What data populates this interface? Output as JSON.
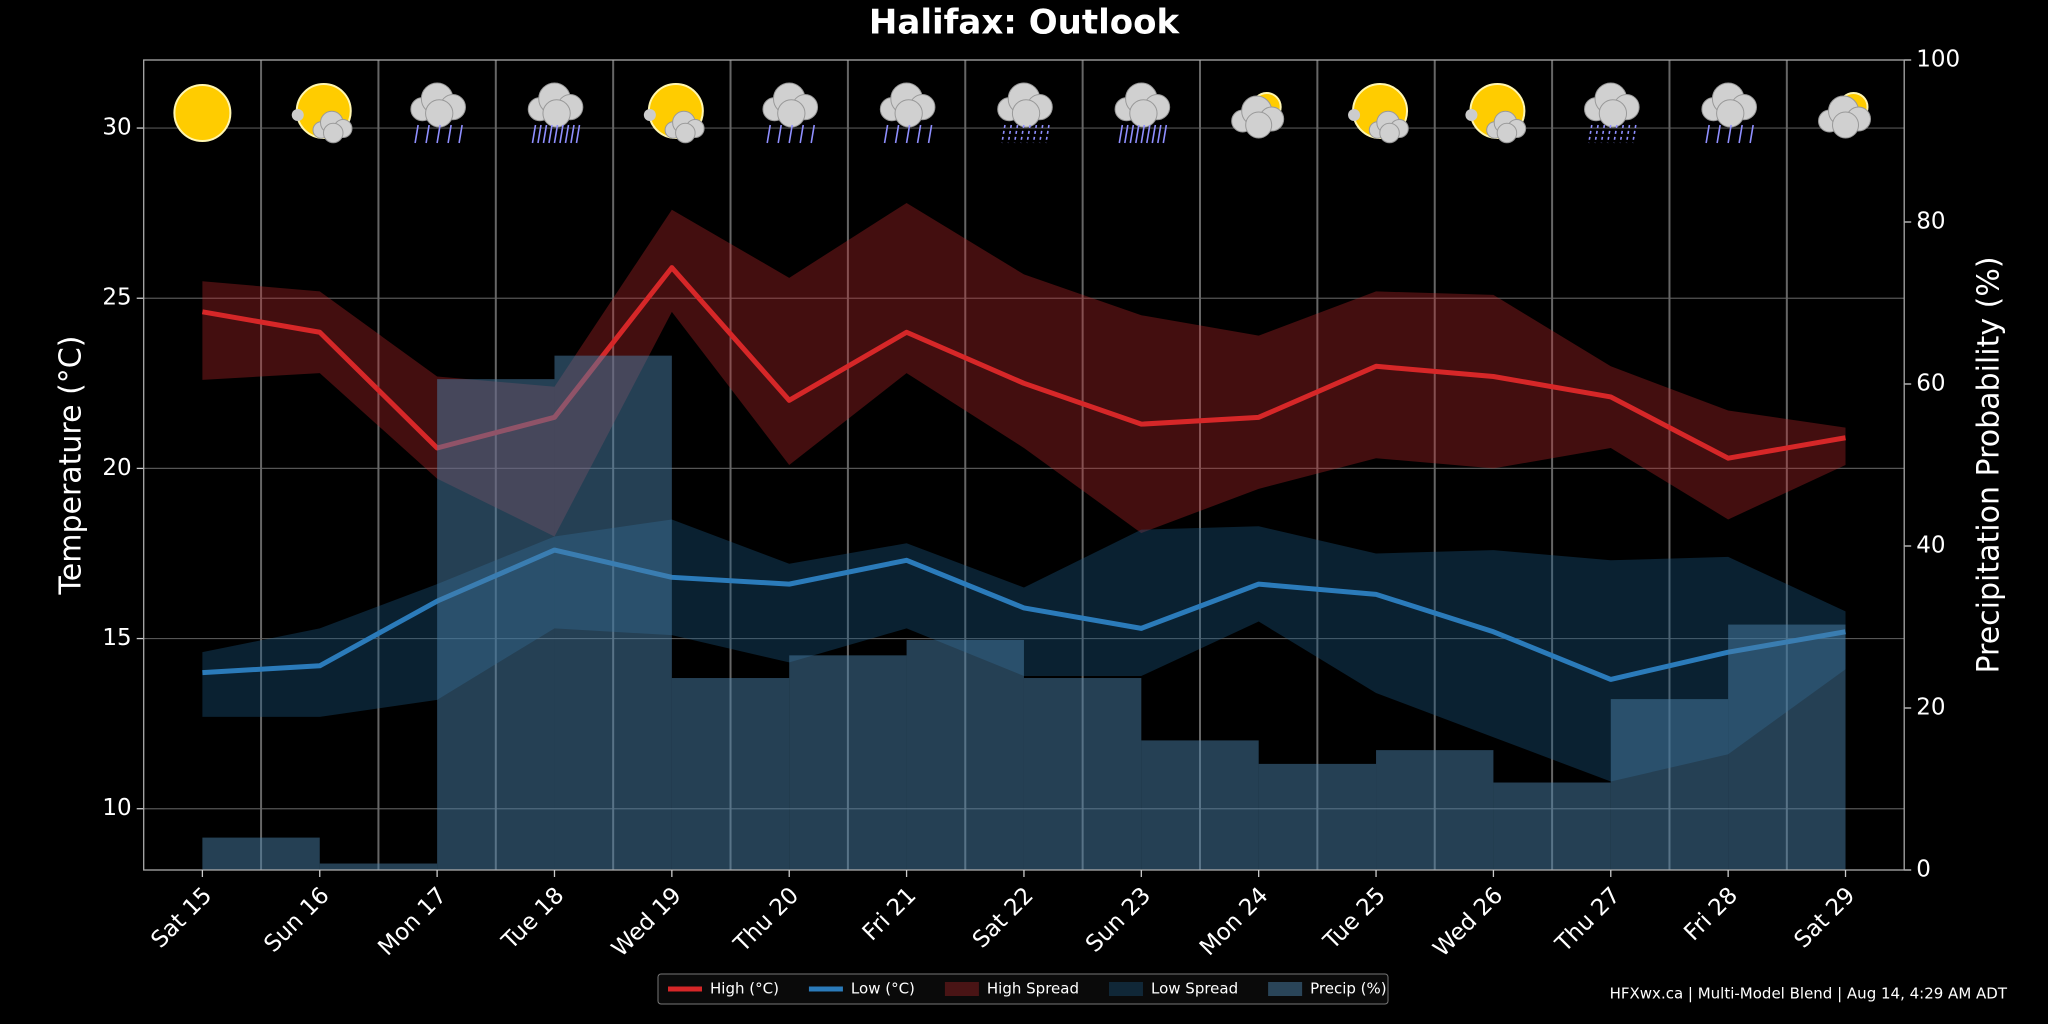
{
  "chart_data": {
    "type": "line",
    "title": "Halifax: Outlook",
    "y_label": "Temperature (°C)",
    "y2_label": "Precipitation Probability (%)",
    "footer": "HFXwx.ca | Multi-Model Blend | Aug 14, 4:29 AM ADT",
    "categories": [
      "Sat 15",
      "Sun 16",
      "Mon 17",
      "Tue 18",
      "Wed 19",
      "Thu 20",
      "Fri 21",
      "Sat 22",
      "Sun 23",
      "Mon 24",
      "Tue 25",
      "Wed 26",
      "Thu 27",
      "Fri 28",
      "Sat 29"
    ],
    "ylim": [
      8.2,
      32.0
    ],
    "yticks": [
      10,
      15,
      20,
      25,
      30
    ],
    "y2lim": [
      0,
      100
    ],
    "y2ticks": [
      0,
      20,
      40,
      60,
      80,
      100
    ],
    "grid": true,
    "legend": "bottom",
    "series": [
      {
        "name": "High (°C)",
        "color": "#d62728",
        "values": [
          24.6,
          24.0,
          20.6,
          21.5,
          25.9,
          22.0,
          24.0,
          22.5,
          21.3,
          21.5,
          23.0,
          22.7,
          22.1,
          20.3,
          20.9
        ]
      },
      {
        "name": "Low (°C)",
        "color": "#2b7bba",
        "values": [
          14.0,
          14.2,
          16.1,
          17.6,
          16.8,
          16.6,
          17.3,
          15.9,
          15.3,
          16.6,
          16.3,
          15.2,
          13.8,
          14.6,
          15.2
        ]
      },
      {
        "name": "High Spread",
        "color": "#c0282c",
        "upper": [
          25.5,
          25.2,
          22.7,
          22.4,
          27.6,
          25.6,
          27.8,
          25.7,
          24.5,
          23.9,
          25.2,
          25.1,
          23.0,
          21.7,
          21.2
        ],
        "lower": [
          22.6,
          22.8,
          19.7,
          18.0,
          24.6,
          20.1,
          22.8,
          20.6,
          18.1,
          19.4,
          20.3,
          20.0,
          20.6,
          18.5,
          20.1
        ]
      },
      {
        "name": "Low Spread",
        "color": "#1e5f8c",
        "upper": [
          14.6,
          15.3,
          16.6,
          18.0,
          18.5,
          17.2,
          17.8,
          16.5,
          18.2,
          18.3,
          17.5,
          17.6,
          17.3,
          17.4,
          15.8
        ],
        "lower": [
          12.7,
          12.7,
          13.2,
          15.3,
          15.1,
          14.3,
          15.3,
          13.9,
          13.9,
          15.5,
          13.4,
          12.1,
          10.8,
          11.6,
          14.1
        ]
      },
      {
        "name": "Precip (%)",
        "color": "#4a7fa8",
        "axis": "y2",
        "values": [
          4.0,
          0.8,
          60.6,
          63.5,
          23.7,
          26.5,
          28.4,
          23.7,
          16.0,
          13.1,
          14.8,
          10.8,
          21.1,
          30.3,
          null
        ]
      }
    ]
  }
}
